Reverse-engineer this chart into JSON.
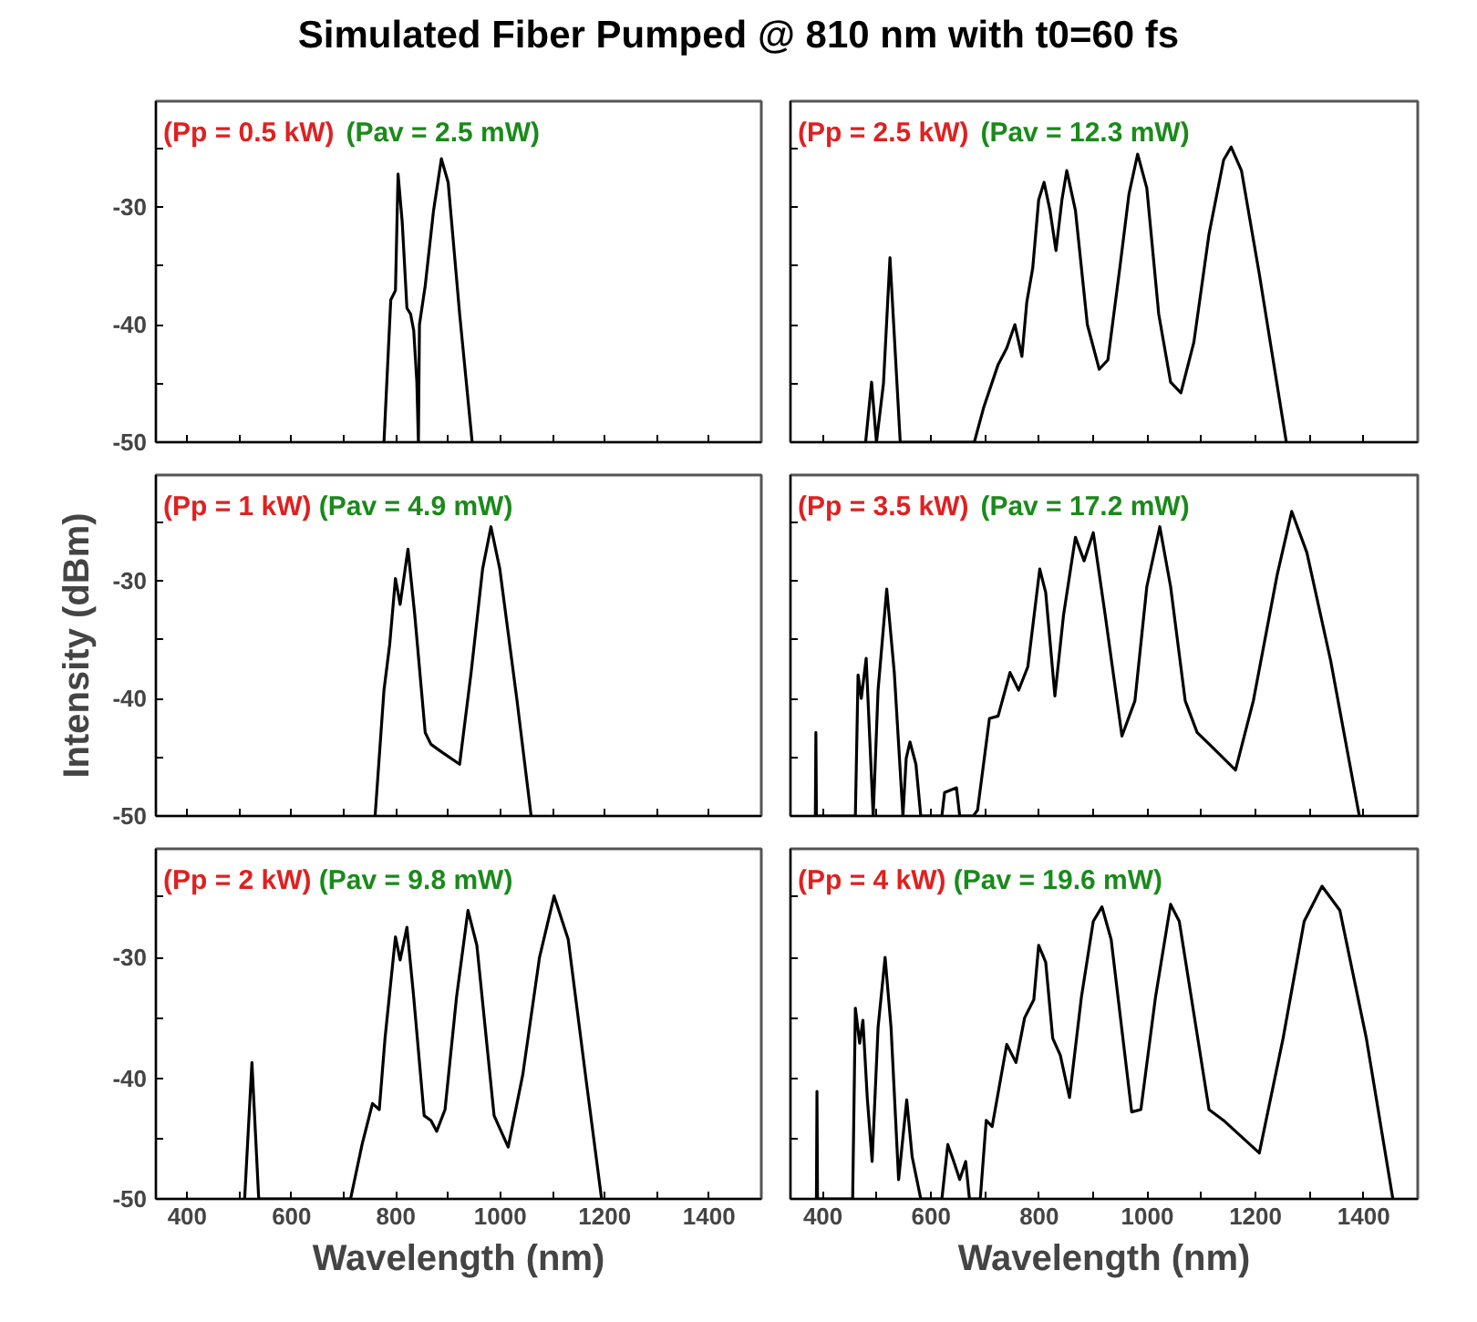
{
  "chart_data": [
    {
      "type": "line",
      "title": "Simulated Fiber Pumped @ 810 nm with t0=60 fs",
      "annotations": [
        "(Pp = 0.5 kW)",
        "(Pav = 2.5 mW)"
      ],
      "xlim": [
        340,
        1500
      ],
      "ylim": [
        -50,
        -21
      ],
      "xticks": [
        400,
        {
          "value": 500,
          "label": null
        },
        600,
        {
          "value": 700,
          "label": null
        },
        800,
        {
          "value": 900,
          "label": null
        },
        1000,
        {
          "value": 1100,
          "label": null
        },
        1200,
        {
          "value": 1300,
          "label": null
        },
        1400
      ],
      "yticks": [
        {
          "value": -25,
          "label": null
        },
        -30,
        {
          "value": -35,
          "label": null
        },
        -40,
        {
          "value": -45,
          "label": null
        },
        -50
      ],
      "tick_labels": "y",
      "grid": false,
      "series": [
        {
          "color": "#000000",
          "x": [
            777,
            790,
            799,
            804,
            812,
            821,
            828,
            834,
            840,
            843,
            845,
            856,
            872,
            887,
            900,
            922,
            946
          ],
          "values": [
            -50,
            -37.9,
            -37.1,
            -27.2,
            -31.3,
            -38.6,
            -39.1,
            -40.5,
            -44.9,
            -50,
            -40,
            -36.7,
            -30.3,
            -25.9,
            -27.9,
            -39.1,
            -50
          ]
        }
      ]
    },
    {
      "type": "line",
      "annotations": [
        "(Pp = 2.5 kW)",
        "(Pav = 12.3 mW)"
      ],
      "xlim": [
        340,
        1500
      ],
      "ylim": [
        -50,
        -21
      ],
      "xticks": [
        400,
        {
          "value": 500,
          "label": null
        },
        600,
        {
          "value": 700,
          "label": null
        },
        800,
        {
          "value": 900,
          "label": null
        },
        1000,
        {
          "value": 1100,
          "label": null
        },
        1200,
        {
          "value": 1300,
          "label": null
        },
        1400
      ],
      "yticks": [
        {
          "value": -25,
          "label": null
        },
        -30,
        {
          "value": -35,
          "label": null
        },
        -40,
        {
          "value": -45,
          "label": null
        },
        -50
      ],
      "tick_labels": false,
      "grid": false,
      "series": [
        {
          "color": "#000000",
          "x": [
            479,
            490,
            499,
            512,
            524,
            543,
            680,
            697,
            724,
            740,
            755,
            768,
            777,
            788,
            799,
            809,
            820,
            831,
            842,
            851,
            867,
            889,
            911,
            927,
            949,
            966,
            982,
            999,
            1021,
            1043,
            1062,
            1086,
            1114,
            1141,
            1155,
            1174,
            1207,
            1257
          ],
          "values": [
            -50,
            -44.9,
            -50,
            -45,
            -34.3,
            -50,
            -50,
            -47.1,
            -43.4,
            -42,
            -40,
            -42.7,
            -38.1,
            -35.2,
            -29.4,
            -27.9,
            -30.3,
            -33.7,
            -29.4,
            -26.9,
            -30.3,
            -40,
            -43.8,
            -43,
            -35.2,
            -28.9,
            -25.5,
            -28.4,
            -39.1,
            -44.9,
            -45.8,
            -41.5,
            -32.3,
            -26,
            -24.9,
            -26.9,
            -35.7,
            -50
          ]
        }
      ]
    },
    {
      "type": "line",
      "annotations": [
        "(Pp = 1 kW)",
        "(Pav = 4.9 mW)"
      ],
      "ylabel": "Intensity (dBm)",
      "xlim": [
        340,
        1500
      ],
      "ylim": [
        -50,
        -21
      ],
      "xticks": [
        400,
        {
          "value": 500,
          "label": null
        },
        600,
        {
          "value": 700,
          "label": null
        },
        800,
        {
          "value": 900,
          "label": null
        },
        1000,
        {
          "value": 1100,
          "label": null
        },
        1200,
        {
          "value": 1300,
          "label": null
        },
        1400
      ],
      "yticks": [
        {
          "value": -25,
          "label": null
        },
        -30,
        {
          "value": -35,
          "label": null
        },
        -40,
        {
          "value": -45,
          "label": null
        },
        -50
      ],
      "tick_labels": "y",
      "grid": false,
      "series": [
        {
          "color": "#000000",
          "x": [
            760,
            777,
            788,
            799,
            808,
            823,
            836,
            856,
            867,
            889,
            922,
            944,
            966,
            982,
            999,
            1032,
            1059
          ],
          "values": [
            -50,
            -39.3,
            -35.4,
            -29.8,
            -32,
            -27.3,
            -32.9,
            -42.9,
            -43.9,
            -44.6,
            -45.6,
            -37.8,
            -29,
            -25.4,
            -29,
            -40.2,
            -50
          ]
        }
      ]
    },
    {
      "type": "line",
      "annotations": [
        "(Pp = 3.5 kW)",
        "(Pav = 17.2 mW)"
      ],
      "xlim": [
        340,
        1500
      ],
      "ylim": [
        -50,
        -21
      ],
      "xticks": [
        400,
        {
          "value": 500,
          "label": null
        },
        600,
        {
          "value": 700,
          "label": null
        },
        800,
        {
          "value": 900,
          "label": null
        },
        1000,
        {
          "value": 1100,
          "label": null
        },
        1200,
        {
          "value": 1300,
          "label": null
        },
        1400
      ],
      "yticks": [
        {
          "value": -25,
          "label": null
        },
        -30,
        {
          "value": -35,
          "label": null
        },
        -40,
        {
          "value": -45,
          "label": null
        },
        -50
      ],
      "tick_labels": false,
      "grid": false,
      "series": [
        {
          "color": "#000000",
          "x": [
            386,
            387,
            388,
            460,
            465,
            471,
            480,
            493,
            502,
            518,
            532,
            548,
            554,
            561,
            572,
            581,
            620,
            625,
            647,
            653,
            678,
            686,
            708,
            724,
            746,
            762,
            779,
            801,
            812,
            829,
            845,
            867,
            883,
            900,
            922,
            953,
            977,
            999,
            1023,
            1043,
            1070,
            1092,
            1119,
            1163,
            1196,
            1240,
            1267,
            1295,
            1339,
            1392
          ],
          "values": [
            -50,
            -42.9,
            -50,
            -50,
            -38,
            -40,
            -36.6,
            -50,
            -39.3,
            -30.7,
            -37.8,
            -50,
            -45.1,
            -43.7,
            -45.6,
            -50,
            -50,
            -48,
            -47.6,
            -50,
            -50,
            -49.5,
            -41.7,
            -41.5,
            -37.8,
            -39.3,
            -37.3,
            -29,
            -31,
            -39.8,
            -32.9,
            -26.3,
            -28.3,
            -25.9,
            -32.9,
            -43.2,
            -40.2,
            -30.5,
            -25.4,
            -30.5,
            -40.2,
            -42.9,
            -44.1,
            -46.1,
            -40.2,
            -29.5,
            -24.1,
            -27.6,
            -36.8,
            -50
          ]
        }
      ]
    },
    {
      "type": "line",
      "annotations": [
        "(Pp = 2 kW)",
        "(Pav = 9.8 mW)"
      ],
      "xlabel": "Wavelength (nm)",
      "xlim": [
        340,
        1500
      ],
      "ylim": [
        -50,
        -21
      ],
      "xticks": [
        400,
        {
          "value": 500,
          "label": null
        },
        600,
        {
          "value": 700,
          "label": null
        },
        800,
        {
          "value": 900,
          "label": null
        },
        1000,
        {
          "value": 1100,
          "label": null
        },
        1200,
        {
          "value": 1300,
          "label": null
        },
        1400
      ],
      "yticks": [
        {
          "value": -25,
          "label": null
        },
        -30,
        {
          "value": -35,
          "label": null
        },
        -40,
        {
          "value": -45,
          "label": null
        },
        -50
      ],
      "grid": false,
      "series": [
        {
          "color": "#000000",
          "x": [
            510,
            524,
            537,
            713,
            735,
            755,
            768,
            779,
            799,
            808,
            821,
            834,
            854,
            867,
            878,
            894,
            916,
            938,
            955,
            988,
            1015,
            1043,
            1075,
            1103,
            1130,
            1163,
            1194
          ],
          "values": [
            -50,
            -38.7,
            -50,
            -50,
            -45.5,
            -42.1,
            -42.6,
            -36.7,
            -28.3,
            -30.2,
            -27.5,
            -33.3,
            -43.1,
            -43.5,
            -44.4,
            -42.6,
            -33.3,
            -26.1,
            -29,
            -43.1,
            -45.7,
            -39.7,
            -30,
            -24.9,
            -28.5,
            -39.7,
            -50
          ]
        }
      ]
    },
    {
      "type": "line",
      "annotations": [
        "(Pp = 4 kW)",
        "(Pav = 19.6 mW)"
      ],
      "xlabel": "Wavelength (nm)",
      "xlim": [
        340,
        1500
      ],
      "ylim": [
        -50,
        -21
      ],
      "xticks": [
        400,
        {
          "value": 500,
          "label": null
        },
        600,
        {
          "value": 700,
          "label": null
        },
        800,
        {
          "value": 900,
          "label": null
        },
        1000,
        {
          "value": 1100,
          "label": null
        },
        1200,
        {
          "value": 1300,
          "label": null
        },
        1400
      ],
      "yticks": [
        {
          "value": -25,
          "label": null
        },
        -30,
        {
          "value": -35,
          "label": null
        },
        -40,
        {
          "value": -45,
          "label": null
        },
        -50
      ],
      "tick_labels": "x",
      "grid": false,
      "series": [
        {
          "color": "#000000",
          "x": [
            388,
            389,
            390,
            455,
            460,
            468,
            474,
            482,
            491,
            502,
            515,
            526,
            540,
            555,
            565,
            581,
            620,
            631,
            642,
            653,
            664,
            671,
            691,
            702,
            713,
            740,
            757,
            773,
            790,
            799,
            812,
            825,
            839,
            856,
            878,
            900,
            916,
            933,
            971,
            988,
            1015,
            1043,
            1059,
            1114,
            1141,
            1207,
            1251,
            1290,
            1323,
            1356,
            1405,
            1454
          ],
          "values": [
            -50,
            -41.1,
            -50,
            -50,
            -34.2,
            -37.1,
            -35.2,
            -41.6,
            -46.9,
            -35.8,
            -30,
            -35.8,
            -48.4,
            -41.8,
            -46.5,
            -50,
            -50,
            -45.5,
            -46.9,
            -48.4,
            -46.9,
            -50,
            -50,
            -43.5,
            -44,
            -37.2,
            -38.7,
            -35,
            -33.5,
            -29,
            -30.4,
            -36.7,
            -38.1,
            -41.6,
            -33.3,
            -27,
            -25.8,
            -28.5,
            -42.8,
            -42.6,
            -33.3,
            -25.6,
            -27,
            -42.6,
            -43.5,
            -46.2,
            -36.7,
            -27,
            -24.1,
            -26.1,
            -36.7,
            -50
          ]
        }
      ]
    }
  ]
}
